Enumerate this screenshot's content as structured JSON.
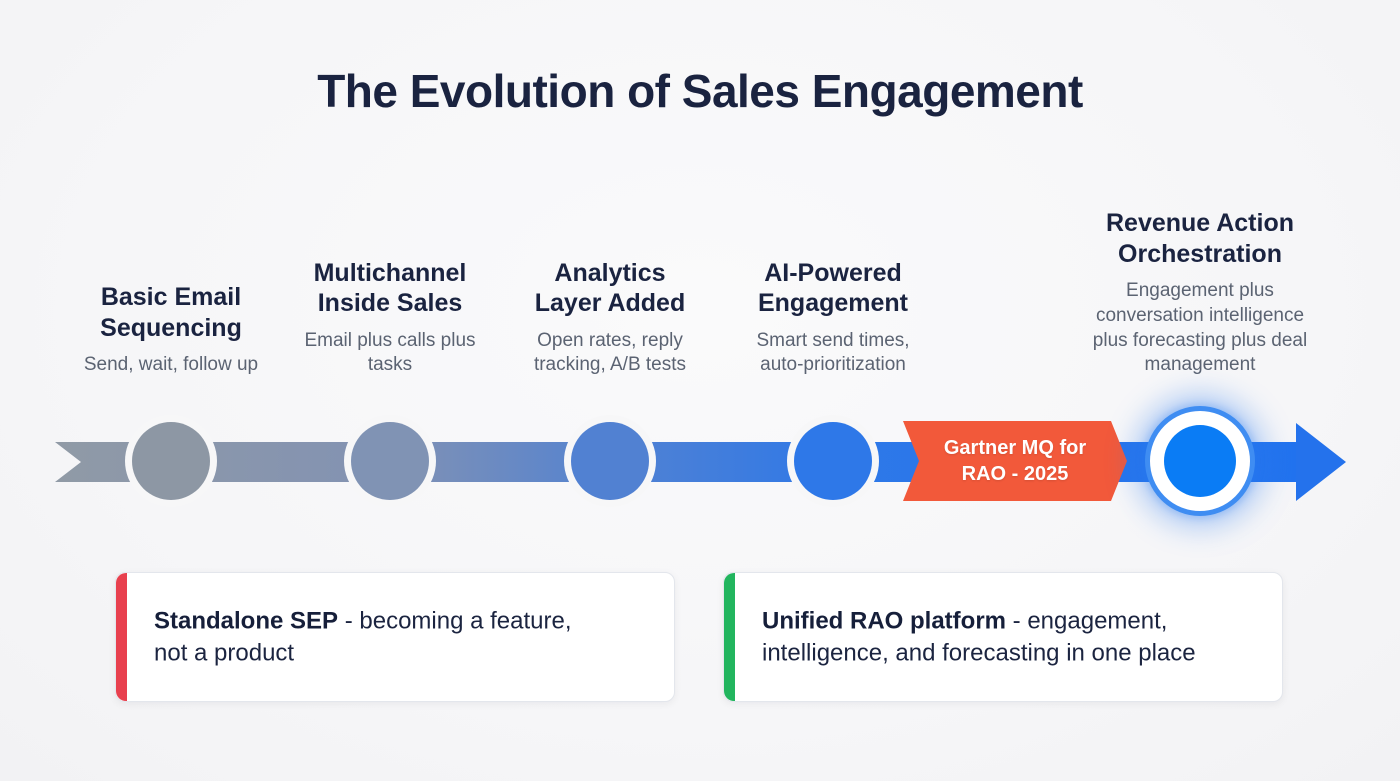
{
  "page": {
    "title": "The Evolution of Sales Engagement",
    "background_color": "#f7f7f8",
    "title_color": "#1a2340"
  },
  "stages": [
    {
      "title": "Basic Email Sequencing",
      "desc": "Send, wait, follow up",
      "dot_color": "#8d97a4"
    },
    {
      "title": "Multichannel Inside Sales",
      "desc": "Email plus calls plus tasks",
      "dot_color": "#8093b4"
    },
    {
      "title": "Analytics Layer Added",
      "desc": "Open rates, reply tracking, A/B tests",
      "dot_color": "#5181d2"
    },
    {
      "title": "AI-Powered Engagement",
      "desc": "Smart send times, auto-prioritization",
      "dot_color": "#2e78e8"
    },
    {
      "title": "Revenue Action Orchestration",
      "desc": "Engagement plus conversation intelligence plus forecasting plus deal management",
      "dot_color": "#0a7cf5"
    }
  ],
  "timeline": {
    "badge": {
      "label": "Gartner MQ for RAO - 2025",
      "color": "#f2593a"
    },
    "arrow_gradient_start": "#909aa6",
    "arrow_gradient_end": "#2273ee",
    "arrowhead_color": "#2472ec",
    "milestone": {
      "core_color": "#0a7cf5",
      "ring_color": "#3f8df2"
    }
  },
  "callouts": [
    {
      "lead": "Standalone SEP",
      "rest": " - becoming a feature,",
      "line2": "not a product",
      "accent_color": "#e8404e"
    },
    {
      "lead": "Unified RAO platform",
      "rest": " - engagement,",
      "line2": "intelligence, and forecasting in one place",
      "accent_color": "#22b55e"
    }
  ]
}
